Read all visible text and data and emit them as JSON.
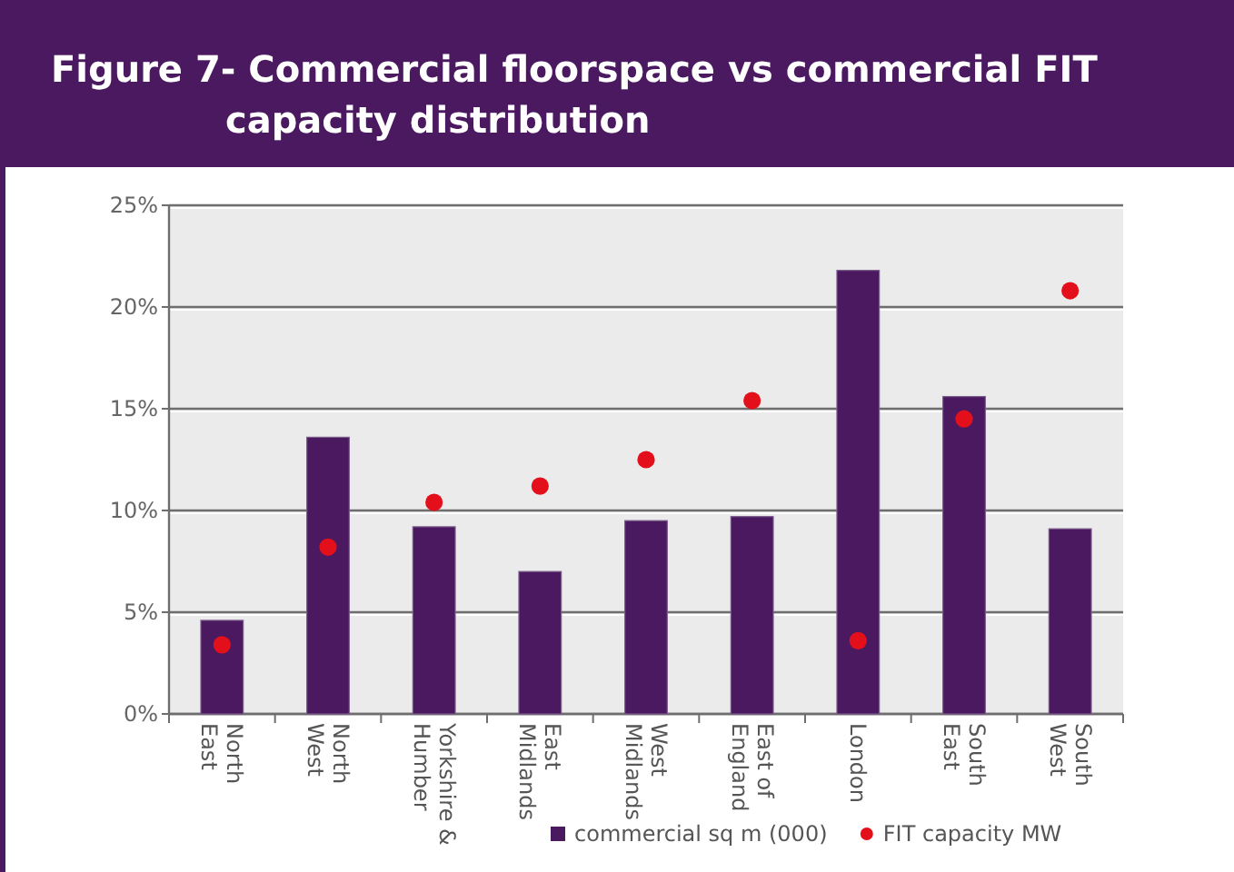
{
  "chart_data": {
    "type": "bar",
    "title": "Figure 7- Commercial floorspace vs commercial FIT capacity distribution",
    "categories": [
      "North East",
      "North West",
      "Yorkshire & Humber",
      "East Midlands",
      "West Midlands",
      "East of England",
      "London",
      "South East",
      "South West"
    ],
    "series": [
      {
        "name": "commercial sq m (000)",
        "color": "#4b1960",
        "values": [
          4.6,
          13.6,
          9.2,
          7.0,
          9.5,
          9.7,
          21.8,
          15.6,
          9.1
        ]
      },
      {
        "name": "FIT capacity MW",
        "type": "scatter",
        "color": "#e3101b",
        "values": [
          3.4,
          8.2,
          10.4,
          11.2,
          12.5,
          15.4,
          3.6,
          14.5,
          20.8
        ]
      }
    ],
    "ylim": [
      0,
      25
    ],
    "yticks": [
      {
        "value": 0,
        "label": "0%"
      },
      {
        "value": 5,
        "label": "5%"
      },
      {
        "value": 10,
        "label": "10%"
      },
      {
        "value": 15,
        "label": "15%"
      },
      {
        "value": 20,
        "label": "20%"
      },
      {
        "value": 25,
        "label": "25%"
      }
    ],
    "grid": "y",
    "legend": "bottom",
    "marker": "circle"
  }
}
